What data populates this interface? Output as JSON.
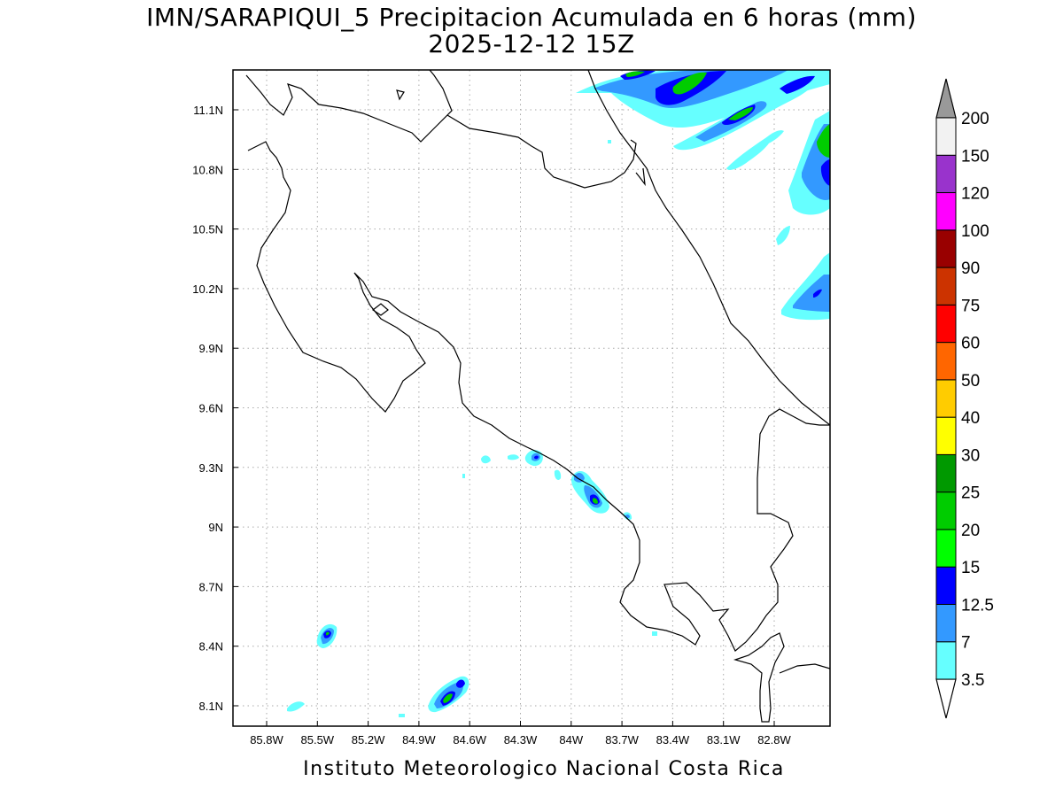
{
  "title": "IMN/SARAPIQUI_5 Precipitacion Acumulada en 6 horas (mm)",
  "subtitle": "2025-12-12 15Z",
  "footer": "Instituto Meteorologico Nacional Costa Rica",
  "map": {
    "lon_range": [
      -86.0,
      -82.6
    ],
    "lat_range": [
      8.0,
      11.3
    ],
    "lon_ticks": [
      "85.8W",
      "85.5W",
      "85.2W",
      "84.9W",
      "84.6W",
      "84.3W",
      "84W",
      "83.7W",
      "83.4W",
      "83.1W",
      "82.8W"
    ],
    "lat_ticks": [
      "11.1N",
      "10.8N",
      "10.5N",
      "10.2N",
      "9.9N",
      "9.6N",
      "9.3N",
      "9N",
      "8.7N",
      "8.4N",
      "8.1N"
    ],
    "grid": "dotted"
  },
  "colorbar": {
    "levels": [
      "3.5",
      "7",
      "12.5",
      "15",
      "20",
      "25",
      "30",
      "40",
      "50",
      "60",
      "75",
      "90",
      "100",
      "120",
      "150",
      "200"
    ],
    "colors": [
      "#66ffff",
      "#3399ff",
      "#0000ff",
      "#00ff00",
      "#00cc00",
      "#009900",
      "#ffff00",
      "#ffcc00",
      "#ff6600",
      "#ff0000",
      "#cc3300",
      "#990000",
      "#ff00ff",
      "#9933cc",
      "#f2f2f2",
      "#999999"
    ]
  }
}
